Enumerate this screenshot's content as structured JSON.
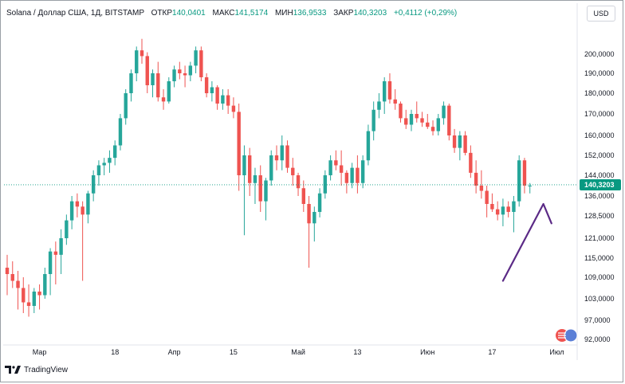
{
  "header": {
    "symbol": "Solana / Доллар США, 1Д, BITSTAMP",
    "open_label": "ОТКР",
    "open": "140,0401",
    "high_label": "МАКС",
    "high": "141,5174",
    "low_label": "МИН",
    "low": "136,9533",
    "close_label": "ЗАКР",
    "close": "140,3203",
    "change": "+0,4112 (+0,29%)"
  },
  "currency_button": "USD",
  "footer": {
    "brand": "TradingView"
  },
  "colors": {
    "up": "#26a69a",
    "down": "#ef5350",
    "arrow": "#5b2a86",
    "price_tag": "#089981"
  },
  "chart_data": {
    "type": "candlestick",
    "current_price": 140.3203,
    "current_price_label": "140,3203",
    "y_ticks": [
      {
        "value": 200,
        "label": "200,0000"
      },
      {
        "value": 190,
        "label": "190,0000"
      },
      {
        "value": 180,
        "label": "180,0000"
      },
      {
        "value": 170,
        "label": "170,0000"
      },
      {
        "value": 160,
        "label": "160,0000"
      },
      {
        "value": 152,
        "label": "152,0000"
      },
      {
        "value": 144,
        "label": "144,0000"
      },
      {
        "value": 136,
        "label": "136,0000"
      },
      {
        "value": 128.5,
        "label": "128,5000"
      },
      {
        "value": 121,
        "label": "121,0000"
      },
      {
        "value": 115,
        "label": "115,0000"
      },
      {
        "value": 109,
        "label": "109,0000"
      },
      {
        "value": 103,
        "label": "103,0000"
      },
      {
        "value": 97,
        "label": "97,0000"
      },
      {
        "value": 92,
        "label": "92,0000"
      }
    ],
    "x_ticks": [
      {
        "index": 6,
        "label": "Мар"
      },
      {
        "index": 20,
        "label": "18"
      },
      {
        "index": 31,
        "label": "Апр"
      },
      {
        "index": 42,
        "label": "15"
      },
      {
        "index": 54,
        "label": "Май"
      },
      {
        "index": 65,
        "label": "13"
      },
      {
        "index": 78,
        "label": "Июн"
      },
      {
        "index": 90,
        "label": "17"
      },
      {
        "index": 102,
        "label": "Июл"
      }
    ],
    "candles": [
      [
        112,
        116,
        104,
        110
      ],
      [
        110,
        114,
        106,
        108
      ],
      [
        108,
        111,
        100,
        106
      ],
      [
        106,
        109,
        99,
        102
      ],
      [
        102,
        107,
        98,
        101
      ],
      [
        101,
        106,
        99,
        105
      ],
      [
        105,
        107,
        100,
        104
      ],
      [
        104,
        112,
        103,
        110
      ],
      [
        110,
        118,
        104,
        117
      ],
      [
        117,
        120,
        107,
        116
      ],
      [
        116,
        124,
        110,
        121
      ],
      [
        121,
        129,
        119,
        127
      ],
      [
        127,
        136,
        124,
        134
      ],
      [
        134,
        137,
        128,
        132
      ],
      [
        132,
        134,
        108,
        129
      ],
      [
        129,
        138,
        126,
        137
      ],
      [
        137,
        146,
        134,
        144
      ],
      [
        144,
        150,
        140,
        148
      ],
      [
        148,
        151,
        144,
        149
      ],
      [
        149,
        154,
        145,
        151
      ],
      [
        151,
        158,
        148,
        156
      ],
      [
        156,
        170,
        154,
        168
      ],
      [
        168,
        182,
        165,
        180
      ],
      [
        180,
        192,
        176,
        190
      ],
      [
        190,
        204,
        186,
        202
      ],
      [
        202,
        208,
        195,
        199
      ],
      [
        199,
        201,
        180,
        184
      ],
      [
        184,
        192,
        178,
        190
      ],
      [
        190,
        196,
        176,
        178
      ],
      [
        178,
        182,
        172,
        176
      ],
      [
        176,
        188,
        175,
        186
      ],
      [
        186,
        194,
        183,
        192
      ],
      [
        192,
        196,
        187,
        190
      ],
      [
        190,
        194,
        183,
        189
      ],
      [
        189,
        196,
        186,
        194
      ],
      [
        194,
        204,
        190,
        202
      ],
      [
        202,
        204,
        186,
        188
      ],
      [
        188,
        190,
        178,
        180
      ],
      [
        180,
        186,
        176,
        183
      ],
      [
        183,
        184,
        172,
        175
      ],
      [
        175,
        182,
        172,
        179
      ],
      [
        179,
        182,
        170,
        174
      ],
      [
        174,
        178,
        168,
        171
      ],
      [
        171,
        175,
        138,
        144
      ],
      [
        144,
        156,
        122,
        152
      ],
      [
        152,
        155,
        136,
        141
      ],
      [
        141,
        147,
        133,
        144
      ],
      [
        144,
        148,
        130,
        134
      ],
      [
        134,
        143,
        127,
        142
      ],
      [
        142,
        154,
        140,
        152
      ],
      [
        152,
        156,
        146,
        150
      ],
      [
        150,
        160,
        146,
        156
      ],
      [
        156,
        158,
        145,
        147
      ],
      [
        147,
        151,
        140,
        144
      ],
      [
        144,
        145,
        136,
        139
      ],
      [
        139,
        142,
        130,
        133
      ],
      [
        133,
        136,
        112,
        126
      ],
      [
        126,
        132,
        120,
        130
      ],
      [
        130,
        139,
        128,
        137
      ],
      [
        137,
        146,
        135,
        144
      ],
      [
        144,
        152,
        142,
        150
      ],
      [
        150,
        154,
        146,
        148
      ],
      [
        148,
        154,
        140,
        145
      ],
      [
        145,
        146,
        137,
        141
      ],
      [
        141,
        149,
        139,
        147
      ],
      [
        147,
        152,
        137,
        141
      ],
      [
        141,
        152,
        139,
        150
      ],
      [
        150,
        165,
        148,
        162
      ],
      [
        162,
        176,
        158,
        172
      ],
      [
        172,
        180,
        168,
        176
      ],
      [
        176,
        188,
        170,
        186
      ],
      [
        186,
        190,
        175,
        177
      ],
      [
        177,
        182,
        172,
        175
      ],
      [
        175,
        176,
        166,
        168
      ],
      [
        168,
        172,
        163,
        165
      ],
      [
        165,
        172,
        162,
        170
      ],
      [
        170,
        176,
        166,
        168
      ],
      [
        168,
        171,
        164,
        166
      ],
      [
        166,
        170,
        163,
        164
      ],
      [
        164,
        167,
        160,
        162
      ],
      [
        162,
        170,
        160,
        168
      ],
      [
        168,
        176,
        165,
        174
      ],
      [
        174,
        175,
        158,
        160
      ],
      [
        160,
        163,
        153,
        155
      ],
      [
        155,
        162,
        150,
        160
      ],
      [
        160,
        162,
        152,
        153
      ],
      [
        153,
        156,
        143,
        145
      ],
      [
        145,
        150,
        137,
        140
      ],
      [
        140,
        146,
        135,
        138
      ],
      [
        138,
        140,
        128,
        133
      ],
      [
        133,
        137,
        130,
        131
      ],
      [
        131,
        134,
        127,
        129
      ],
      [
        129,
        135,
        125,
        132
      ],
      [
        132,
        134,
        128,
        130
      ],
      [
        130,
        136,
        123,
        134
      ],
      [
        134,
        152,
        132,
        150
      ],
      [
        150,
        151,
        137,
        140
      ],
      [
        140,
        141,
        137,
        140
      ]
    ],
    "annotation_arrow": {
      "from": {
        "index": 92,
        "value": 108
      },
      "to": {
        "index": 99.5,
        "value": 133
      },
      "head": {
        "index": 101,
        "value": 126
      }
    }
  }
}
